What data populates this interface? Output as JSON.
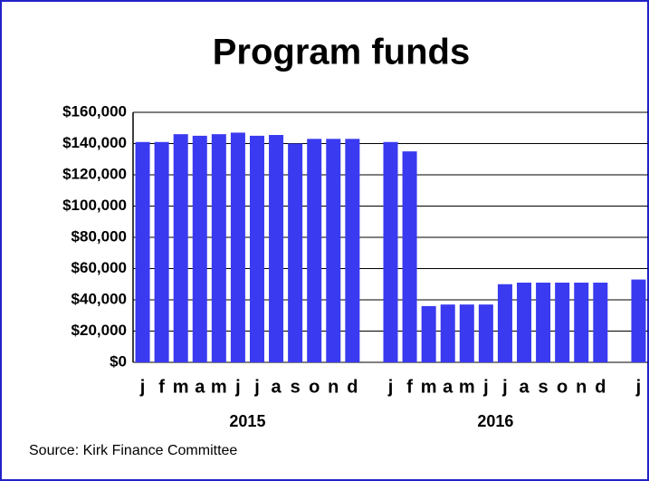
{
  "chart_data": {
    "type": "bar",
    "title": "Program funds",
    "categories": [
      "j",
      "f",
      "m",
      "a",
      "m",
      "j",
      "j",
      "a",
      "s",
      "o",
      "n",
      "d",
      null,
      "j",
      "f",
      "m",
      "a",
      "m",
      "j",
      "j",
      "a",
      "s",
      "o",
      "n",
      "d",
      null,
      "j"
    ],
    "values": [
      141000,
      141000,
      146000,
      145000,
      146000,
      147000,
      145000,
      145500,
      140000,
      143000,
      143000,
      143000,
      null,
      141000,
      135000,
      36000,
      37000,
      37000,
      37000,
      50000,
      51000,
      51000,
      51000,
      51000,
      51000,
      null,
      53000
    ],
    "year_labels": [
      "2015",
      "2016"
    ],
    "color": "#3a3af0",
    "ylim": [
      0,
      160000
    ],
    "yticks": [
      {
        "value": 0,
        "label": "$0"
      },
      {
        "value": 20000,
        "label": "$20,000"
      },
      {
        "value": 40000,
        "label": "$40,000"
      },
      {
        "value": 60000,
        "label": "$60,000"
      },
      {
        "value": 80000,
        "label": "$80,000"
      },
      {
        "value": 100000,
        "label": "$100,000"
      },
      {
        "value": 120000,
        "label": "$120,000"
      },
      {
        "value": 140000,
        "label": "$140,000"
      },
      {
        "value": 160000,
        "label": "$160,000"
      }
    ],
    "grid": true,
    "source": "Source: Kirk Finance Committee"
  }
}
